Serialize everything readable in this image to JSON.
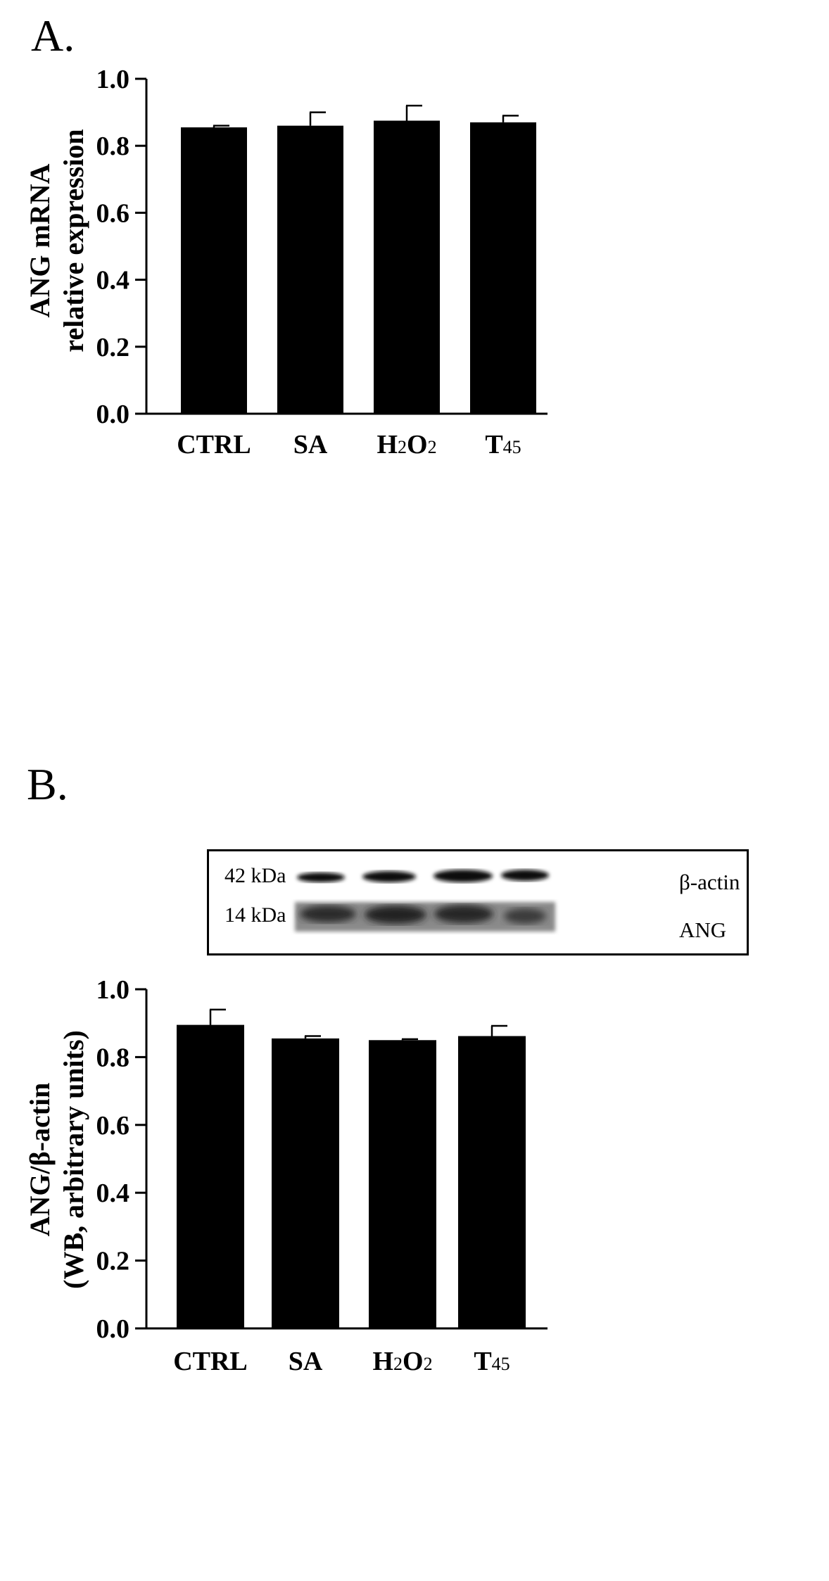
{
  "panels": {
    "a_label": "A.",
    "b_label": "B."
  },
  "blot": {
    "kda_top": "42 kDa",
    "kda_bottom": "14 kDa",
    "name_top": "β-actin",
    "name_bottom": "ANG"
  },
  "chart_data": [
    {
      "type": "bar",
      "panel": "A.",
      "categories": [
        "CTRL",
        "SA",
        "H2O2",
        "T45"
      ],
      "category_labels": [
        {
          "main": "CTRL",
          "sub": []
        },
        {
          "main": "SA",
          "sub": []
        },
        {
          "main": "H",
          "sub": [
            "2",
            "O",
            "2"
          ]
        },
        {
          "main": "T",
          "sub": [
            "45"
          ]
        }
      ],
      "values": [
        0.855,
        0.86,
        0.875,
        0.87
      ],
      "errors": [
        0.005,
        0.04,
        0.045,
        0.02
      ],
      "ylabel_lines": [
        "ANG mRNA",
        "relative expression"
      ],
      "ylim": [
        0,
        1.0
      ],
      "yticks": [
        "0.0",
        "0.2",
        "0.4",
        "0.6",
        "0.8",
        "1.0"
      ],
      "bar_color": "#000000",
      "grid": false
    },
    {
      "type": "bar",
      "panel": "B.",
      "categories": [
        "CTRL",
        "SA",
        "H2O2",
        "T45"
      ],
      "category_labels": [
        {
          "main": "CTRL",
          "sub": []
        },
        {
          "main": "SA",
          "sub": []
        },
        {
          "main": "H",
          "sub": [
            "2",
            "O",
            "2"
          ]
        },
        {
          "main": "T",
          "sub": [
            "45"
          ]
        }
      ],
      "values": [
        0.895,
        0.855,
        0.85,
        0.862
      ],
      "errors": [
        0.045,
        0.007,
        0.003,
        0.03
      ],
      "ylabel_lines": [
        "ANG/β-actin",
        "(WB, arbitrary units)"
      ],
      "ylim": [
        0,
        1.0
      ],
      "yticks": [
        "0.0",
        "0.2",
        "0.4",
        "0.6",
        "0.8",
        "1.0"
      ],
      "bar_color": "#000000",
      "grid": false
    }
  ]
}
